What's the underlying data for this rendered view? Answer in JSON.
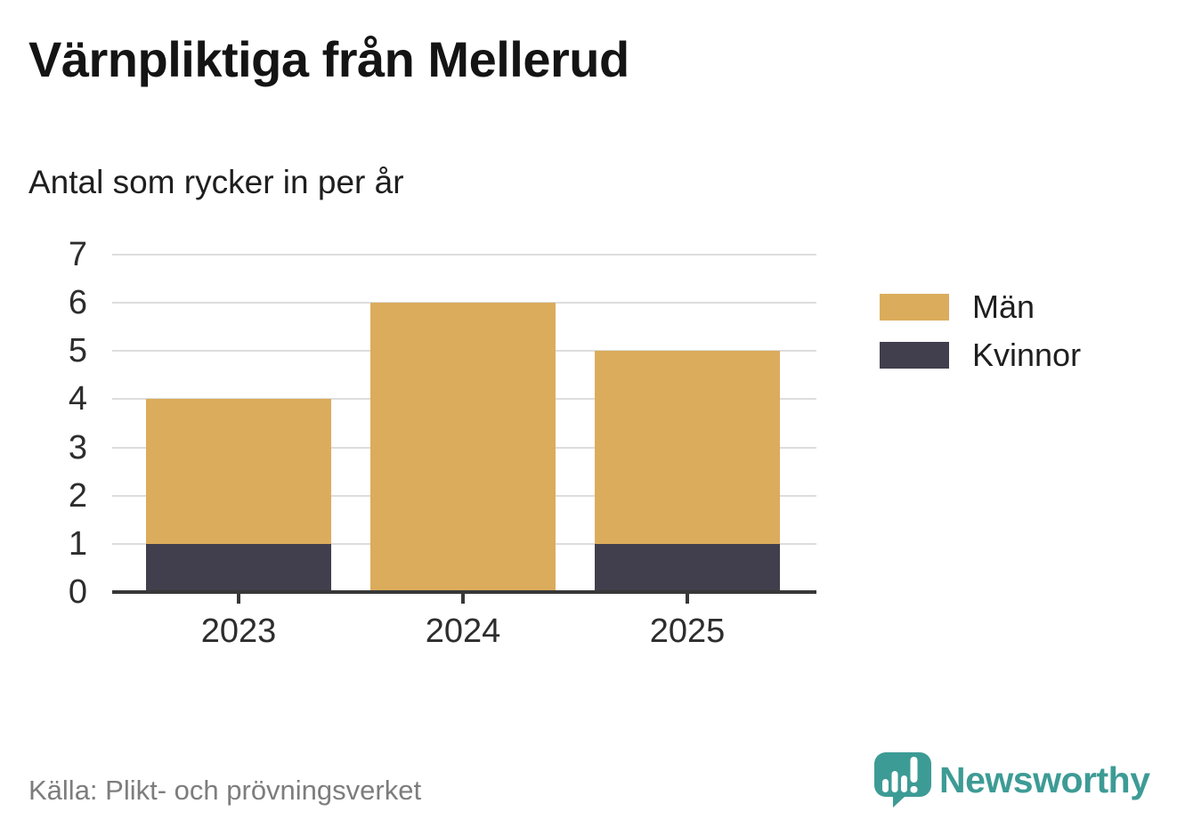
{
  "header": {
    "title": "Värnpliktiga från Mellerud",
    "subtitle": "Antal som rycker in per år"
  },
  "chart_data": {
    "type": "bar",
    "stacked": true,
    "title": "Värnpliktiga från Mellerud",
    "subtitle": "Antal som rycker in per år",
    "categories": [
      "2023",
      "2024",
      "2025"
    ],
    "series": [
      {
        "name": "Män",
        "color": "#DBAC5C",
        "values": [
          3,
          6,
          4
        ]
      },
      {
        "name": "Kvinnor",
        "color": "#413F4D",
        "values": [
          1,
          0,
          1
        ]
      }
    ],
    "stack_totals": [
      4,
      6,
      5
    ],
    "xlabel": "",
    "ylabel": "",
    "ylim": [
      0,
      7
    ],
    "yticks": [
      0,
      1,
      2,
      3,
      4,
      5,
      6,
      7
    ],
    "grid": true,
    "gridline_color": "#DDDDDD",
    "axis_color": "#383838",
    "legend_position": "right"
  },
  "footer": {
    "source": "Källa: Plikt- och prövningsverket",
    "brand": "Newsworthy",
    "brand_color": "#3D9B95"
  }
}
